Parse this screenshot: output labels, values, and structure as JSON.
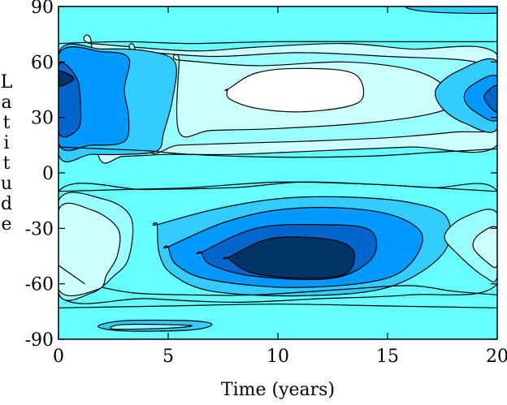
{
  "chart_data": {
    "type": "heatmap",
    "subtype": "filled-contour",
    "title": "",
    "xlabel": "Time (years)",
    "ylabel_letters": [
      "L",
      "a",
      "t",
      "i",
      "t",
      "u",
      "d",
      "e"
    ],
    "xlim": [
      0,
      20
    ],
    "ylim": [
      -90,
      90
    ],
    "x_ticks": [
      0,
      5,
      10,
      15,
      20
    ],
    "y_ticks": [
      -90,
      -60,
      -30,
      0,
      30,
      60,
      90
    ],
    "x_tick_labels": [
      "0",
      "5",
      "10",
      "15",
      "20"
    ],
    "y_tick_labels": [
      "-90",
      "-60",
      "-30",
      "0",
      "30",
      "60",
      "90"
    ],
    "grid": false,
    "legend": "none",
    "colors": {
      "level_0": "#ffffff",
      "level_1": "#ccffff",
      "level_2": "#99ffff",
      "level_3": "#66ffff",
      "level_4": "#33ccff",
      "level_5": "#0099ff",
      "level_6": "#0066cc",
      "level_7": "#003366",
      "contour_line": "#000000",
      "axis": "#000000"
    },
    "regions": [
      {
        "level": 1,
        "label": "north-band-mid",
        "points": [
          [
            1.5,
            70
          ],
          [
            6,
            66
          ],
          [
            9,
            68
          ],
          [
            13,
            70
          ],
          [
            16,
            67
          ],
          [
            20,
            64
          ],
          [
            20,
            15
          ],
          [
            16,
            14
          ],
          [
            12,
            12
          ],
          [
            8,
            10
          ],
          [
            5,
            10
          ],
          [
            3,
            9
          ],
          [
            1.8,
            10
          ],
          [
            1.5,
            70
          ]
        ]
      },
      {
        "level": 2,
        "label": "north-band-mid",
        "points": [
          [
            3.5,
            66
          ],
          [
            7,
            63
          ],
          [
            11,
            65
          ],
          [
            15,
            63
          ],
          [
            19,
            60
          ],
          [
            20,
            50
          ],
          [
            20,
            25
          ],
          [
            18,
            22
          ],
          [
            15,
            19
          ],
          [
            11,
            17
          ],
          [
            8,
            16
          ],
          [
            5.5,
            15
          ],
          [
            4,
            14
          ],
          [
            3.5,
            66
          ]
        ]
      },
      {
        "level": 1,
        "label": "north-band-mid",
        "points": [
          [
            5.5,
            61
          ],
          [
            9,
            58
          ],
          [
            13,
            60
          ],
          [
            16,
            56
          ],
          [
            17.5,
            48
          ],
          [
            18,
            38
          ],
          [
            17,
            32
          ],
          [
            14,
            27
          ],
          [
            10,
            24
          ],
          [
            7,
            23
          ],
          [
            5.5,
            22
          ],
          [
            5.5,
            61
          ]
        ]
      },
      {
        "level": 0,
        "label": "north-max-lighter",
        "points": [
          [
            7.7,
            45
          ],
          [
            9,
            54
          ],
          [
            11,
            56.5
          ],
          [
            13.4,
            54
          ],
          [
            13.9,
            42
          ],
          [
            13.2,
            36
          ],
          [
            11,
            33
          ],
          [
            9,
            35
          ],
          [
            7.8,
            40
          ],
          [
            7.7,
            45
          ]
        ]
      },
      {
        "level": 4,
        "label": "north-old-cycle",
        "points": [
          [
            0,
            65
          ],
          [
            2,
            67
          ],
          [
            4,
            66
          ],
          [
            5.3,
            60
          ],
          [
            5.2,
            40
          ],
          [
            4.8,
            22
          ],
          [
            4.5,
            12
          ],
          [
            3,
            10
          ],
          [
            1.5,
            10
          ],
          [
            0,
            10
          ]
        ]
      },
      {
        "level": 5,
        "label": "north-old-cycle",
        "points": [
          [
            0,
            64
          ],
          [
            2,
            65.5
          ],
          [
            3.2,
            62
          ],
          [
            3,
            45
          ],
          [
            3.2,
            30
          ],
          [
            3,
            17
          ],
          [
            1.5,
            15
          ],
          [
            0,
            16
          ]
        ]
      },
      {
        "level": 6,
        "label": "north-old-cycle",
        "points": [
          [
            0,
            58
          ],
          [
            0.8,
            52
          ],
          [
            1,
            38
          ],
          [
            0.9,
            24
          ],
          [
            0,
            22
          ]
        ]
      },
      {
        "level": 7,
        "label": "north-old-cycle",
        "points": [
          [
            0,
            55
          ],
          [
            0.7,
            51
          ],
          [
            0,
            47
          ]
        ]
      },
      {
        "level": 4,
        "label": "north-new-cycle",
        "points": [
          [
            20,
            60
          ],
          [
            18.2,
            55
          ],
          [
            17.2,
            45
          ],
          [
            17.5,
            35
          ],
          [
            18.5,
            27
          ],
          [
            20,
            24
          ]
        ]
      },
      {
        "level": 5,
        "label": "north-new-cycle",
        "points": [
          [
            20,
            52
          ],
          [
            18.8,
            47
          ],
          [
            18.5,
            40
          ],
          [
            19,
            33
          ],
          [
            20,
            29
          ]
        ]
      },
      {
        "level": 6,
        "label": "north-new-cycle",
        "points": [
          [
            20,
            47
          ],
          [
            19.4,
            41
          ],
          [
            20,
            33
          ]
        ]
      },
      {
        "level": 3,
        "label": "south-band",
        "points": [
          [
            0,
            -10
          ],
          [
            4,
            -9
          ],
          [
            8,
            -8
          ],
          [
            11,
            -5
          ],
          [
            14,
            -6
          ],
          [
            17,
            -8
          ],
          [
            20,
            -10
          ],
          [
            20,
            -60
          ],
          [
            16,
            -66
          ],
          [
            12,
            -68
          ],
          [
            8,
            -70
          ],
          [
            4,
            -68
          ],
          [
            0,
            -66
          ]
        ]
      },
      {
        "level": 4,
        "label": "south-min-cycle",
        "points": [
          [
            4.5,
            -28
          ],
          [
            7,
            -20
          ],
          [
            10,
            -14
          ],
          [
            13,
            -13
          ],
          [
            16,
            -16
          ],
          [
            17.7,
            -24
          ],
          [
            17.5,
            -44
          ],
          [
            15,
            -62
          ],
          [
            11,
            -66.5
          ],
          [
            7,
            -64
          ],
          [
            5.2,
            -55
          ],
          [
            4.6,
            -44
          ],
          [
            4.5,
            -28
          ]
        ]
      },
      {
        "level": 5,
        "label": "south-min-cycle",
        "points": [
          [
            5,
            -40
          ],
          [
            7.5,
            -27
          ],
          [
            10,
            -20
          ],
          [
            13,
            -19
          ],
          [
            15.5,
            -24
          ],
          [
            16.6,
            -36
          ],
          [
            15.2,
            -56
          ],
          [
            11,
            -62
          ],
          [
            7,
            -58
          ],
          [
            5.4,
            -50
          ],
          [
            5,
            -40
          ]
        ]
      },
      {
        "level": 6,
        "label": "south-min-cycle",
        "points": [
          [
            6.5,
            -43
          ],
          [
            9,
            -30
          ],
          [
            12,
            -28
          ],
          [
            14.2,
            -31
          ],
          [
            14.3,
            -46
          ],
          [
            12.5,
            -57
          ],
          [
            9,
            -56
          ],
          [
            7,
            -50
          ],
          [
            6.5,
            -43
          ]
        ]
      },
      {
        "level": 7,
        "label": "south-min-cycle",
        "points": [
          [
            7.7,
            -46
          ],
          [
            9.5,
            -36
          ],
          [
            11.5,
            -35
          ],
          [
            13,
            -38
          ],
          [
            13.5,
            -45
          ],
          [
            13,
            -55
          ],
          [
            11,
            -57
          ],
          [
            8.8,
            -54
          ],
          [
            7.7,
            -46
          ]
        ]
      },
      {
        "level": 2,
        "label": "south-west",
        "points": [
          [
            0,
            -15
          ],
          [
            2,
            -14
          ],
          [
            3.3,
            -24
          ],
          [
            3.2,
            -46
          ],
          [
            2.5,
            -56
          ],
          [
            1.5,
            -65
          ],
          [
            0,
            -65
          ]
        ]
      },
      {
        "level": 1,
        "label": "south-west",
        "points": [
          [
            0,
            -20
          ],
          [
            1.5,
            -20
          ],
          [
            2.7,
            -30
          ],
          [
            2.7,
            -44
          ],
          [
            2.2,
            -55
          ],
          [
            1.8,
            -63
          ],
          [
            0,
            -63
          ]
        ]
      },
      {
        "level": 2,
        "label": "south-east",
        "points": [
          [
            20,
            -22
          ],
          [
            18.5,
            -24
          ],
          [
            17.6,
            -34
          ],
          [
            18.2,
            -44
          ],
          [
            19.4,
            -56
          ],
          [
            20,
            -56
          ]
        ]
      },
      {
        "level": 1,
        "label": "south-east",
        "points": [
          [
            20,
            -30
          ],
          [
            19.2,
            -33
          ],
          [
            18.9,
            -40
          ],
          [
            19.5,
            -48
          ],
          [
            20,
            -50
          ]
        ]
      },
      {
        "level": 4,
        "label": "pole-north",
        "points": [
          [
            16,
            90
          ],
          [
            17,
            87
          ],
          [
            20,
            86.5
          ],
          [
            20,
            90
          ]
        ]
      },
      {
        "level": 4,
        "label": "pole-south",
        "points": [
          [
            1.8,
            -83
          ],
          [
            3,
            -80
          ],
          [
            6,
            -80
          ],
          [
            7,
            -82
          ],
          [
            6,
            -85
          ],
          [
            3,
            -85.5
          ]
        ]
      },
      {
        "level": 2,
        "label": "pole-south",
        "points": [
          [
            2.5,
            -84.5
          ],
          [
            5,
            -84
          ],
          [
            6,
            -82.5
          ],
          [
            3,
            -82
          ]
        ]
      }
    ],
    "contour_lines": [
      [
        [
          0,
          14
        ],
        [
          2,
          13
        ],
        [
          4,
          12
        ],
        [
          6,
          10
        ],
        [
          10,
          8.5
        ],
        [
          14,
          9
        ],
        [
          17,
          11
        ],
        [
          20,
          13
        ]
      ],
      [
        [
          0,
          70
        ],
        [
          3,
          71
        ],
        [
          6,
          70
        ],
        [
          10,
          71
        ],
        [
          15,
          71
        ],
        [
          20,
          71
        ]
      ],
      [
        [
          0,
          -10
        ],
        [
          3,
          -9
        ],
        [
          6,
          -8
        ],
        [
          10,
          -5
        ],
        [
          14,
          -6
        ],
        [
          17,
          -8
        ],
        [
          20,
          -10
        ]
      ],
      [
        [
          0,
          -73
        ],
        [
          5,
          -72
        ],
        [
          10,
          -71
        ],
        [
          15,
          -72
        ],
        [
          20,
          -73
        ]
      ],
      [
        [
          20,
          -66
        ],
        [
          18,
          -64
        ],
        [
          16,
          -61
        ],
        [
          13,
          -63
        ],
        [
          9,
          -66
        ],
        [
          6,
          -66
        ],
        [
          3.5,
          -65
        ],
        [
          2,
          -62
        ]
      ],
      [
        [
          0,
          -50
        ],
        [
          0.6,
          -55
        ],
        [
          1.2,
          -60
        ]
      ]
    ]
  }
}
